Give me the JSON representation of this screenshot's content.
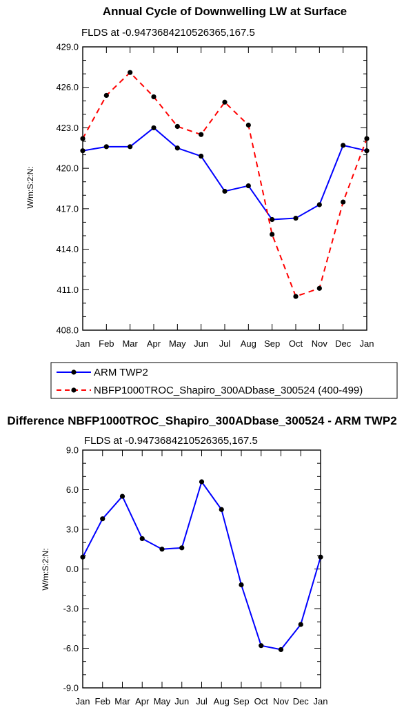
{
  "charts": [
    {
      "title": "Annual Cycle of Downwelling LW at Surface",
      "subtitle": "FLDS at -0.9473684210526365,167.5",
      "ylabel": "W/m:S:2:N:",
      "xlabels": [
        "Jan",
        "Feb",
        "Mar",
        "Apr",
        "May",
        "Jun",
        "Jul",
        "Aug",
        "Sep",
        "Oct",
        "Nov",
        "Dec",
        "Jan"
      ],
      "ytick_labels": [
        "408.0",
        "411.0",
        "414.0",
        "417.0",
        "420.0",
        "423.0",
        "426.0",
        "429.0"
      ],
      "legend": [
        "ARM TWP2",
        "NBFP1000TROC_Shapiro_300ADbase_300524 (400-499)"
      ]
    },
    {
      "title": "Difference NBFP1000TROC_Shapiro_300ADbase_300524 - ARM TWP2",
      "subtitle": "FLDS at -0.9473684210526365,167.5",
      "ylabel": "W/m:S:2:N:",
      "xlabels": [
        "Jan",
        "Feb",
        "Mar",
        "Apr",
        "May",
        "Jun",
        "Jul",
        "Aug",
        "Sep",
        "Oct",
        "Nov",
        "Dec",
        "Jan"
      ],
      "ytick_labels": [
        "-9.0",
        "-6.0",
        "-3.0",
        "0.0",
        "3.0",
        "6.0",
        "9.0"
      ]
    }
  ],
  "chart_data": [
    {
      "type": "line",
      "title": "Annual Cycle of Downwelling LW at Surface",
      "subtitle": "FLDS at -0.9473684210526365,167.5",
      "xlabel": "",
      "ylabel": "W/m:S:2:N:",
      "categories": [
        "Jan",
        "Feb",
        "Mar",
        "Apr",
        "May",
        "Jun",
        "Jul",
        "Aug",
        "Sep",
        "Oct",
        "Nov",
        "Dec",
        "Jan"
      ],
      "ylim": [
        408,
        429
      ],
      "yticks": [
        408,
        411,
        414,
        417,
        420,
        423,
        426,
        429
      ],
      "legend_position": "bottom",
      "series": [
        {
          "name": "ARM TWP2",
          "color": "#0000ff",
          "dash": "solid",
          "values": [
            421.3,
            421.6,
            421.6,
            423.0,
            421.5,
            420.9,
            418.3,
            418.7,
            416.2,
            416.3,
            417.3,
            421.7,
            421.3
          ]
        },
        {
          "name": "NBFP1000TROC_Shapiro_300ADbase_300524 (400-499)",
          "color": "#ff0000",
          "dash": "dashed",
          "values": [
            422.2,
            425.4,
            427.1,
            425.3,
            423.1,
            422.5,
            424.9,
            423.2,
            415.1,
            410.5,
            411.1,
            417.5,
            422.2
          ]
        }
      ]
    },
    {
      "type": "line",
      "title": "Difference NBFP1000TROC_Shapiro_300ADbase_300524 - ARM TWP2",
      "subtitle": "FLDS at -0.9473684210526365,167.5",
      "xlabel": "",
      "ylabel": "W/m:S:2:N:",
      "categories": [
        "Jan",
        "Feb",
        "Mar",
        "Apr",
        "May",
        "Jun",
        "Jul",
        "Aug",
        "Sep",
        "Oct",
        "Nov",
        "Dec",
        "Jan"
      ],
      "ylim": [
        -9,
        9
      ],
      "yticks": [
        -9,
        -6,
        -3,
        0,
        3,
        6,
        9
      ],
      "series": [
        {
          "color": "#0000ff",
          "dash": "solid",
          "values": [
            0.9,
            3.8,
            5.5,
            2.3,
            1.5,
            1.6,
            6.6,
            4.5,
            -1.2,
            -5.8,
            -6.1,
            -4.2,
            0.9
          ]
        }
      ]
    }
  ]
}
